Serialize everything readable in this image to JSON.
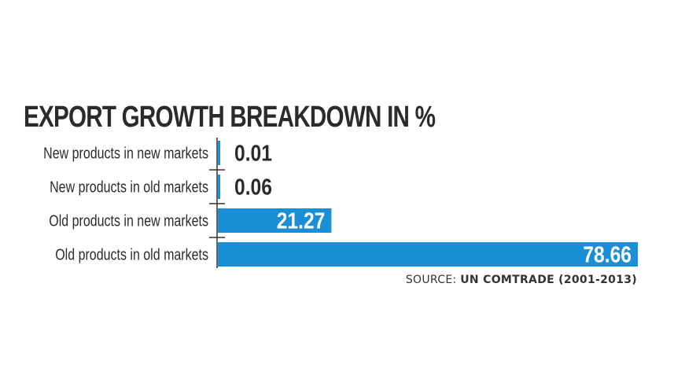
{
  "chart_data": {
    "type": "bar",
    "orientation": "horizontal",
    "title": "EXPORT GROWTH BREAKDOWN IN %",
    "categories": [
      "New products in new markets",
      "New products in old markets",
      "Old products in new markets",
      "Old products in old markets"
    ],
    "values": [
      0.01,
      0.06,
      21.27,
      78.66
    ],
    "value_labels": [
      "0.01",
      "0.06",
      "21.27",
      "78.66"
    ],
    "bar_color": "#1b8fd5",
    "grid": false,
    "legend": "none"
  },
  "source": {
    "prefix": "SOURCE:",
    "name": "UN COMTRADE (2001-2013)"
  }
}
